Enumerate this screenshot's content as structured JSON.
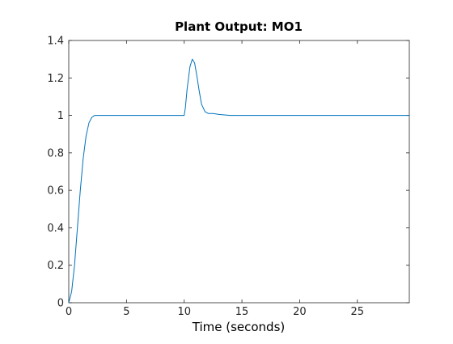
{
  "chart_data": {
    "type": "line",
    "title": "Plant Output:  MO1",
    "xlabel": "Time (seconds)",
    "ylabel": "",
    "xlim": [
      0,
      29.5
    ],
    "ylim": [
      0,
      1.4
    ],
    "grid": false,
    "x_ticks": [
      "0",
      "5",
      "10",
      "15",
      "20",
      "25"
    ],
    "y_ticks": [
      "0",
      "0.2",
      "0.4",
      "0.6",
      "0.8",
      "1",
      "1.2",
      "1.4"
    ],
    "series": [
      {
        "color": "#0072bd",
        "x": [
          0,
          0.25,
          0.5,
          0.75,
          1.0,
          1.25,
          1.5,
          1.75,
          2.0,
          2.25,
          2.5,
          3,
          5,
          8,
          10,
          10.1,
          10.25,
          10.5,
          10.7,
          10.9,
          11.1,
          11.3,
          11.5,
          11.8,
          12.1,
          12.5,
          13,
          14,
          16,
          20,
          25,
          29.5
        ],
        "y": [
          0,
          0.06,
          0.2,
          0.4,
          0.6,
          0.77,
          0.89,
          0.96,
          0.99,
          1.0,
          1.0,
          1.0,
          1.0,
          1.0,
          1.0,
          1.04,
          1.14,
          1.26,
          1.3,
          1.28,
          1.21,
          1.13,
          1.06,
          1.02,
          1.01,
          1.01,
          1.005,
          1.0,
          1.0,
          1.0,
          1.0,
          1.0
        ]
      }
    ]
  }
}
